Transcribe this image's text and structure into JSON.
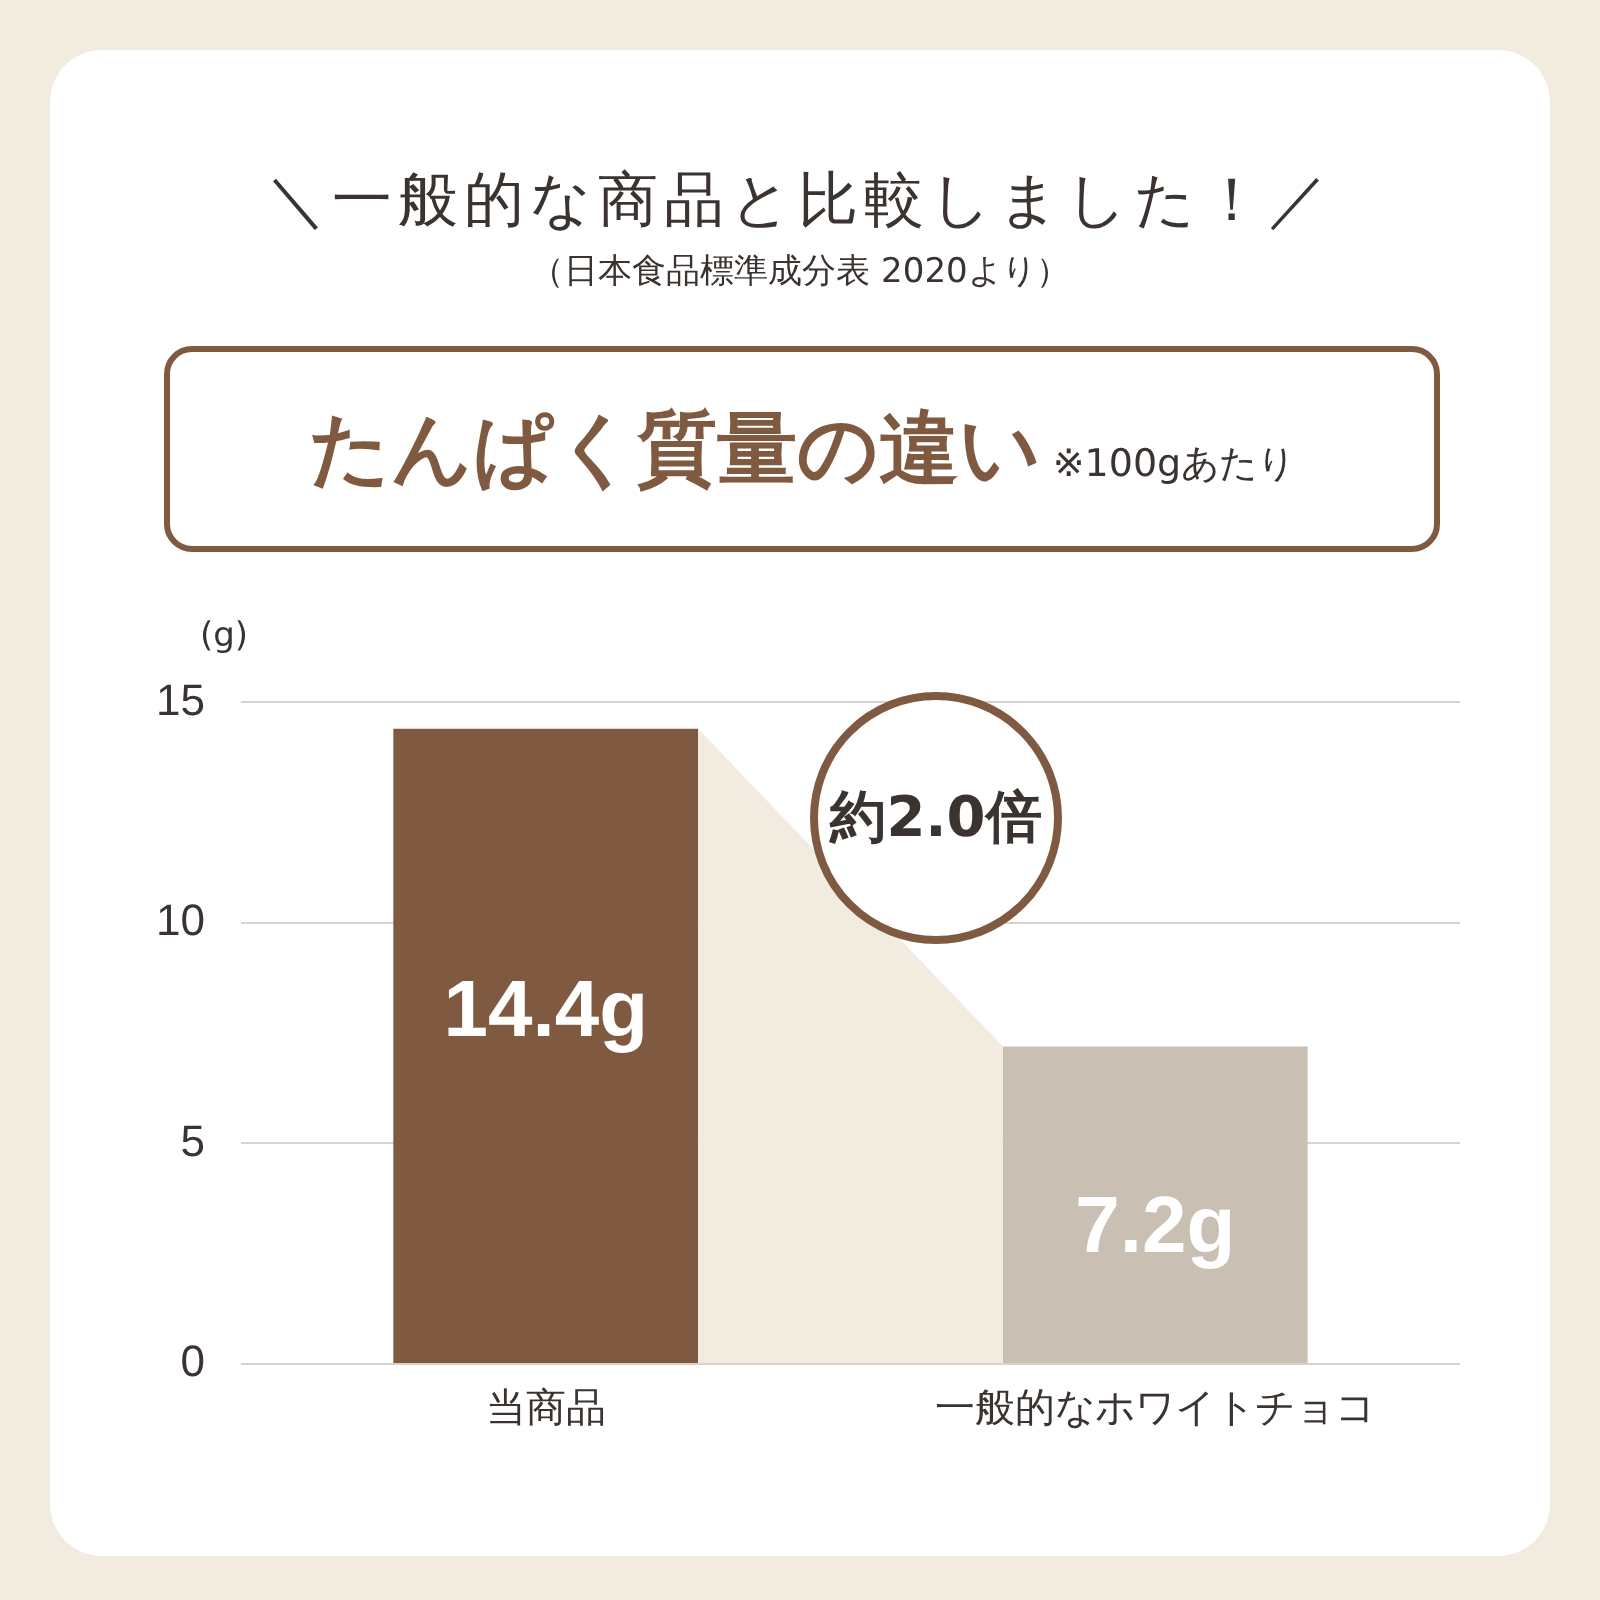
{
  "chart_data": {
    "type": "bar",
    "title": "＼一般的な商品と比較しました！／",
    "subtitle": "（日本食品標準成分表 2020より）",
    "ylabel": "(g)",
    "annotations": [
      "たんぱく質量の違い",
      "※100gあたり",
      "約2.0倍"
    ],
    "categories": [
      "当商品",
      "一般的なホワイトチョコ"
    ],
    "values": [
      14.4,
      7.2
    ],
    "colors": [
      "#7f5a40",
      "#c9bfb2"
    ],
    "value_labels": [
      "14.4g",
      "7.2g"
    ],
    "ylim": [
      0,
      15
    ],
    "yticks": [
      0,
      5,
      10,
      15
    ],
    "grid": "y"
  }
}
